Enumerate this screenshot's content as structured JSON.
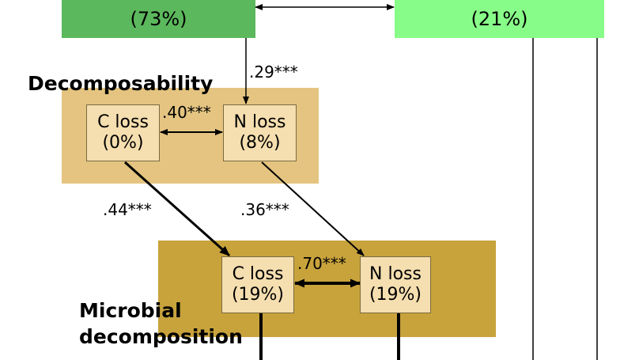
{
  "colors": {
    "top_left_green": "#5cb85c",
    "top_right_green": "#88fc88",
    "decomposability_panel": "#e4c480",
    "microbial_panel": "#c8a33c",
    "node_fill": "#f5deaf"
  },
  "top": {
    "left_percent": "(73%)",
    "right_percent": "(21%)"
  },
  "decomposability": {
    "title": "Decomposability",
    "c_loss": {
      "label": "C loss",
      "percent": "(0%)"
    },
    "n_loss": {
      "label": "N loss",
      "percent": "(8%)"
    }
  },
  "microbial": {
    "title_line1": "Microbial",
    "title_line2": "decomposition",
    "c_loss": {
      "label": "C loss",
      "percent": "(19%)"
    },
    "n_loss": {
      "label": "N loss",
      "percent": "(19%)"
    }
  },
  "coefficients": {
    "top_to_decomp_n": ".29***",
    "decomp_c_n": ".40***",
    "decomp_c_to_micro_c": ".44***",
    "decomp_n_to_micro_n": ".36***",
    "micro_c_n": ".70***"
  }
}
